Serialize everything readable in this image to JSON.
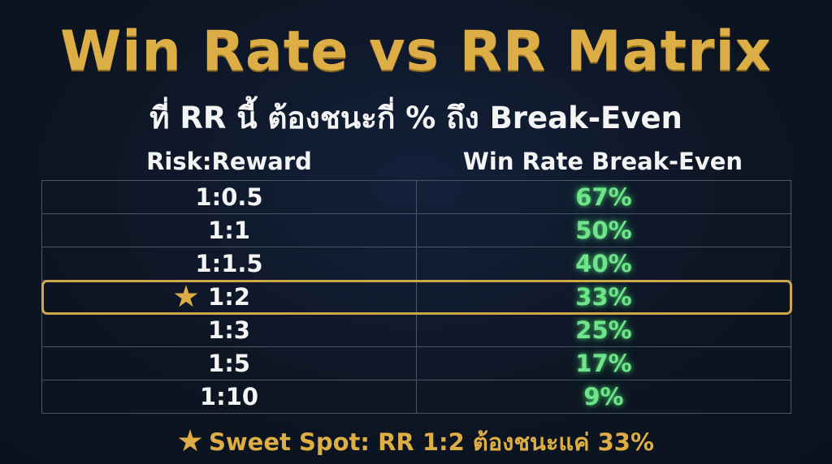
{
  "title": "Win Rate vs RR Matrix",
  "subtitle": "ที่ RR นี้ ต้องชนะกี่ % ถึง Break-Even",
  "columns": {
    "left": "Risk:Reward",
    "right": "Win Rate Break-Even"
  },
  "rows": [
    {
      "rr": "1:0.5",
      "win_rate": "67%"
    },
    {
      "rr": "1:1",
      "win_rate": "50%"
    },
    {
      "rr": "1:1.5",
      "win_rate": "40%"
    },
    {
      "rr": "1:2",
      "win_rate": "33%",
      "highlighted": true
    },
    {
      "rr": "1:3",
      "win_rate": "25%"
    },
    {
      "rr": "1:5",
      "win_rate": "17%"
    },
    {
      "rr": "1:10",
      "win_rate": "9%"
    }
  ],
  "footer": "Sweet Spot: RR 1:2 ต้องชนะแค่ 33%",
  "icons": {
    "highlight": "star-icon",
    "footer": "star-icon"
  },
  "colors": {
    "background": "#0e1624",
    "title": "#dcae45",
    "text": "#f4f4f4",
    "win_rate": "#6ee58a",
    "highlight_border": "#d0a64a",
    "grid": "#4a5565"
  }
}
